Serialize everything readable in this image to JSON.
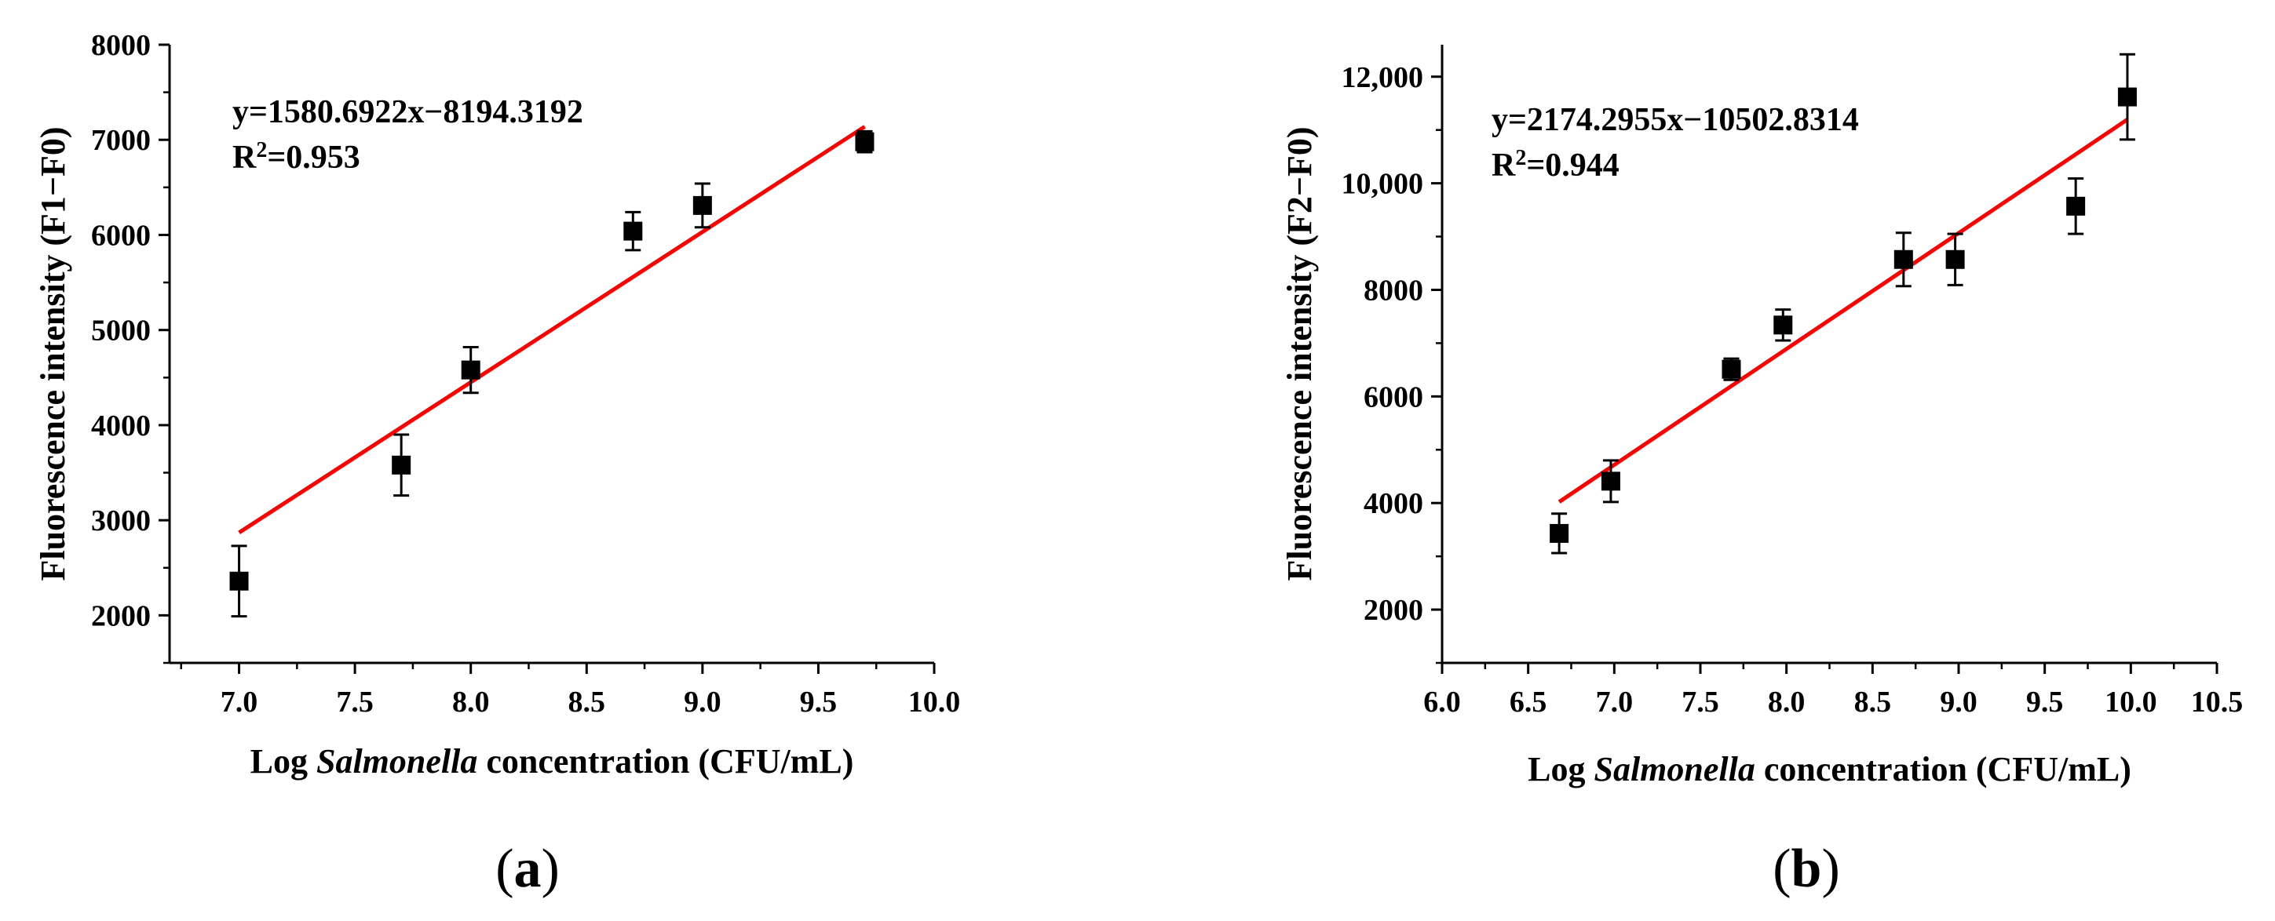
{
  "chart_data": [
    {
      "type": "scatter",
      "panel_label": "a",
      "xlabel_prefix": "Log ",
      "xlabel_italic": "Salmonella",
      "xlabel_suffix": " concentration (CFU/mL)",
      "ylabel": "Fluorescence intensity (F1−F0)",
      "xlim": [
        6.7,
        10.0
      ],
      "ylim": [
        1500,
        8000
      ],
      "xticks": [
        7.0,
        7.5,
        8.0,
        8.5,
        9.0,
        9.5,
        10.0
      ],
      "xtick_labels": [
        "7.0",
        "7.5",
        "8.0",
        "8.5",
        "9.0",
        "9.5",
        "10.0"
      ],
      "yticks": [
        2000,
        3000,
        4000,
        5000,
        6000,
        7000,
        8000
      ],
      "ytick_labels": [
        "2000",
        "3000",
        "4000",
        "5000",
        "6000",
        "7000",
        "8000"
      ],
      "points": [
        {
          "x": 7.0,
          "y": 2360,
          "err": 370
        },
        {
          "x": 7.7,
          "y": 3580,
          "err": 320
        },
        {
          "x": 8.0,
          "y": 4580,
          "err": 240
        },
        {
          "x": 8.7,
          "y": 6040,
          "err": 200
        },
        {
          "x": 9.0,
          "y": 6310,
          "err": 230
        },
        {
          "x": 9.7,
          "y": 6980,
          "err": 110
        }
      ],
      "fit": {
        "slope": 1580.6922,
        "intercept": -8194.3192,
        "x_start": 7.0,
        "x_end": 9.7,
        "color": "#ff0000"
      },
      "equation": "y=1580.6922x−8194.3192",
      "r2_label": "R",
      "r2_sup": "2",
      "r2_value": "=0.953",
      "marker_color": "#000000"
    },
    {
      "type": "scatter",
      "panel_label": "b",
      "xlabel_prefix": "Log ",
      "xlabel_italic": "Salmonella",
      "xlabel_suffix": " concentration (CFU/mL)",
      "ylabel": "Fluorescence intensity (F2−F0)",
      "xlim": [
        6.0,
        10.5
      ],
      "ylim": [
        1000,
        12600
      ],
      "xticks": [
        6.0,
        6.5,
        7.0,
        7.5,
        8.0,
        8.5,
        9.0,
        9.5,
        10.0,
        10.5
      ],
      "xtick_labels": [
        "6.0",
        "6.5",
        "7.0",
        "7.5",
        "8.0",
        "8.5",
        "9.0",
        "9.5",
        "10.0",
        "10.5"
      ],
      "yticks": [
        2000,
        4000,
        6000,
        8000,
        10000,
        12000
      ],
      "ytick_labels": [
        "2000",
        "4000",
        "6000",
        "8000",
        "10,000",
        "12,000"
      ],
      "points": [
        {
          "x": 6.68,
          "y": 3430,
          "err": 370
        },
        {
          "x": 6.98,
          "y": 4410,
          "err": 390
        },
        {
          "x": 7.68,
          "y": 6510,
          "err": 200
        },
        {
          "x": 7.98,
          "y": 7340,
          "err": 290
        },
        {
          "x": 8.68,
          "y": 8570,
          "err": 500
        },
        {
          "x": 8.98,
          "y": 8570,
          "err": 480
        },
        {
          "x": 9.68,
          "y": 9570,
          "err": 520
        },
        {
          "x": 9.98,
          "y": 11620,
          "err": 800
        }
      ],
      "fit": {
        "slope": 2174.2955,
        "intercept": -10502.8314,
        "x_start": 6.68,
        "x_end": 9.98,
        "color": "#ff0000"
      },
      "equation": "y=2174.2955x−10502.8314",
      "r2_label": "R",
      "r2_sup": "2",
      "r2_value": "=0.944",
      "marker_color": "#000000"
    }
  ]
}
